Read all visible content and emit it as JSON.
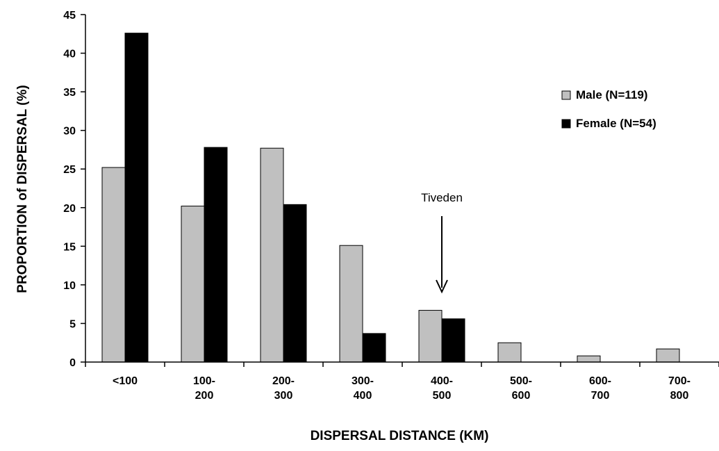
{
  "chart_data": {
    "type": "bar",
    "title": "",
    "xlabel": "DISPERSAL DISTANCE (KM)",
    "ylabel": "PROPORTION of DISPERSAL (%)",
    "ylim": [
      0,
      45
    ],
    "yticks": [
      0,
      5,
      10,
      15,
      20,
      25,
      30,
      35,
      40,
      45
    ],
    "ytick_labels": [
      "0",
      "5",
      "10",
      "15",
      "20",
      "25",
      "30",
      "35",
      "40",
      "45"
    ],
    "categories": [
      [
        "<100"
      ],
      [
        "100-",
        "200"
      ],
      [
        "200-",
        "300"
      ],
      [
        "300-",
        "400"
      ],
      [
        "400-",
        "500"
      ],
      [
        "500-",
        "600"
      ],
      [
        "600-",
        "700"
      ],
      [
        "700-",
        "800"
      ]
    ],
    "series": [
      {
        "name": "Male (N=119)",
        "color": "#c0c0c0",
        "values": [
          25.2,
          20.2,
          27.7,
          15.1,
          6.7,
          2.5,
          0.8,
          1.7
        ]
      },
      {
        "name": "Female (N=54)",
        "color": "#000000",
        "values": [
          42.6,
          27.8,
          20.4,
          3.7,
          5.6,
          0,
          0,
          0
        ]
      }
    ],
    "legend_position": "top-right",
    "grid": false,
    "annotation": {
      "text": "Tiveden",
      "category_index": 4,
      "arrow": "down"
    }
  }
}
